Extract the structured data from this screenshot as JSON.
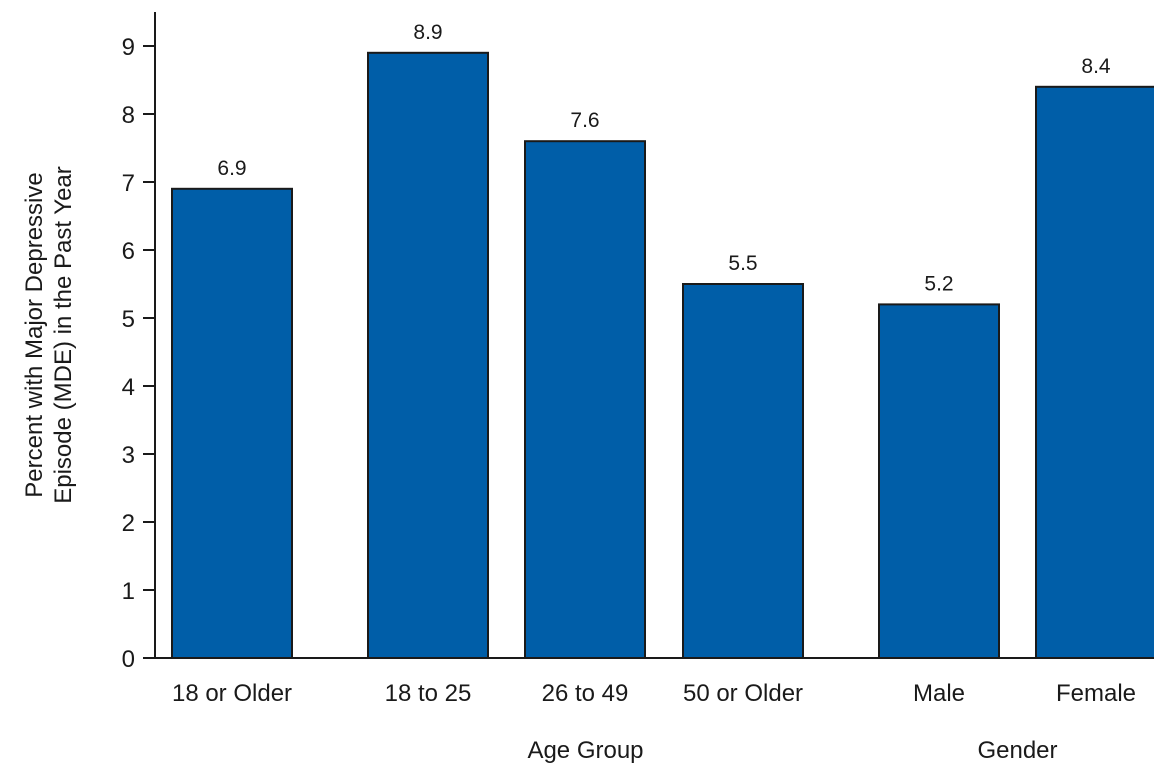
{
  "chart_data": {
    "type": "bar",
    "categories": [
      "18 or Older",
      "18 to 25",
      "26 to 49",
      "50 or Older",
      "Male",
      "Female"
    ],
    "values": [
      6.9,
      8.9,
      7.6,
      5.5,
      5.2,
      8.4
    ],
    "data_labels": [
      "6.9",
      "8.9",
      "7.6",
      "5.5",
      "5.2",
      "8.4"
    ],
    "groups": [
      {
        "label": "Age Group",
        "categories": [
          "18 to 25",
          "26 to 49",
          "50 or Older"
        ]
      },
      {
        "label": "Gender",
        "categories": [
          "Male",
          "Female"
        ]
      }
    ],
    "ylabel_lines": [
      "Percent with Major Depressive",
      "Episode (MDE) in the Past Year"
    ],
    "yticks": [
      "0",
      "1",
      "2",
      "3",
      "4",
      "5",
      "6",
      "7",
      "8",
      "9"
    ],
    "ylim": [
      0,
      9.5
    ],
    "grid": false,
    "bar_color": "#005ea8",
    "bar_edge_color": "#1a1a1a"
  }
}
